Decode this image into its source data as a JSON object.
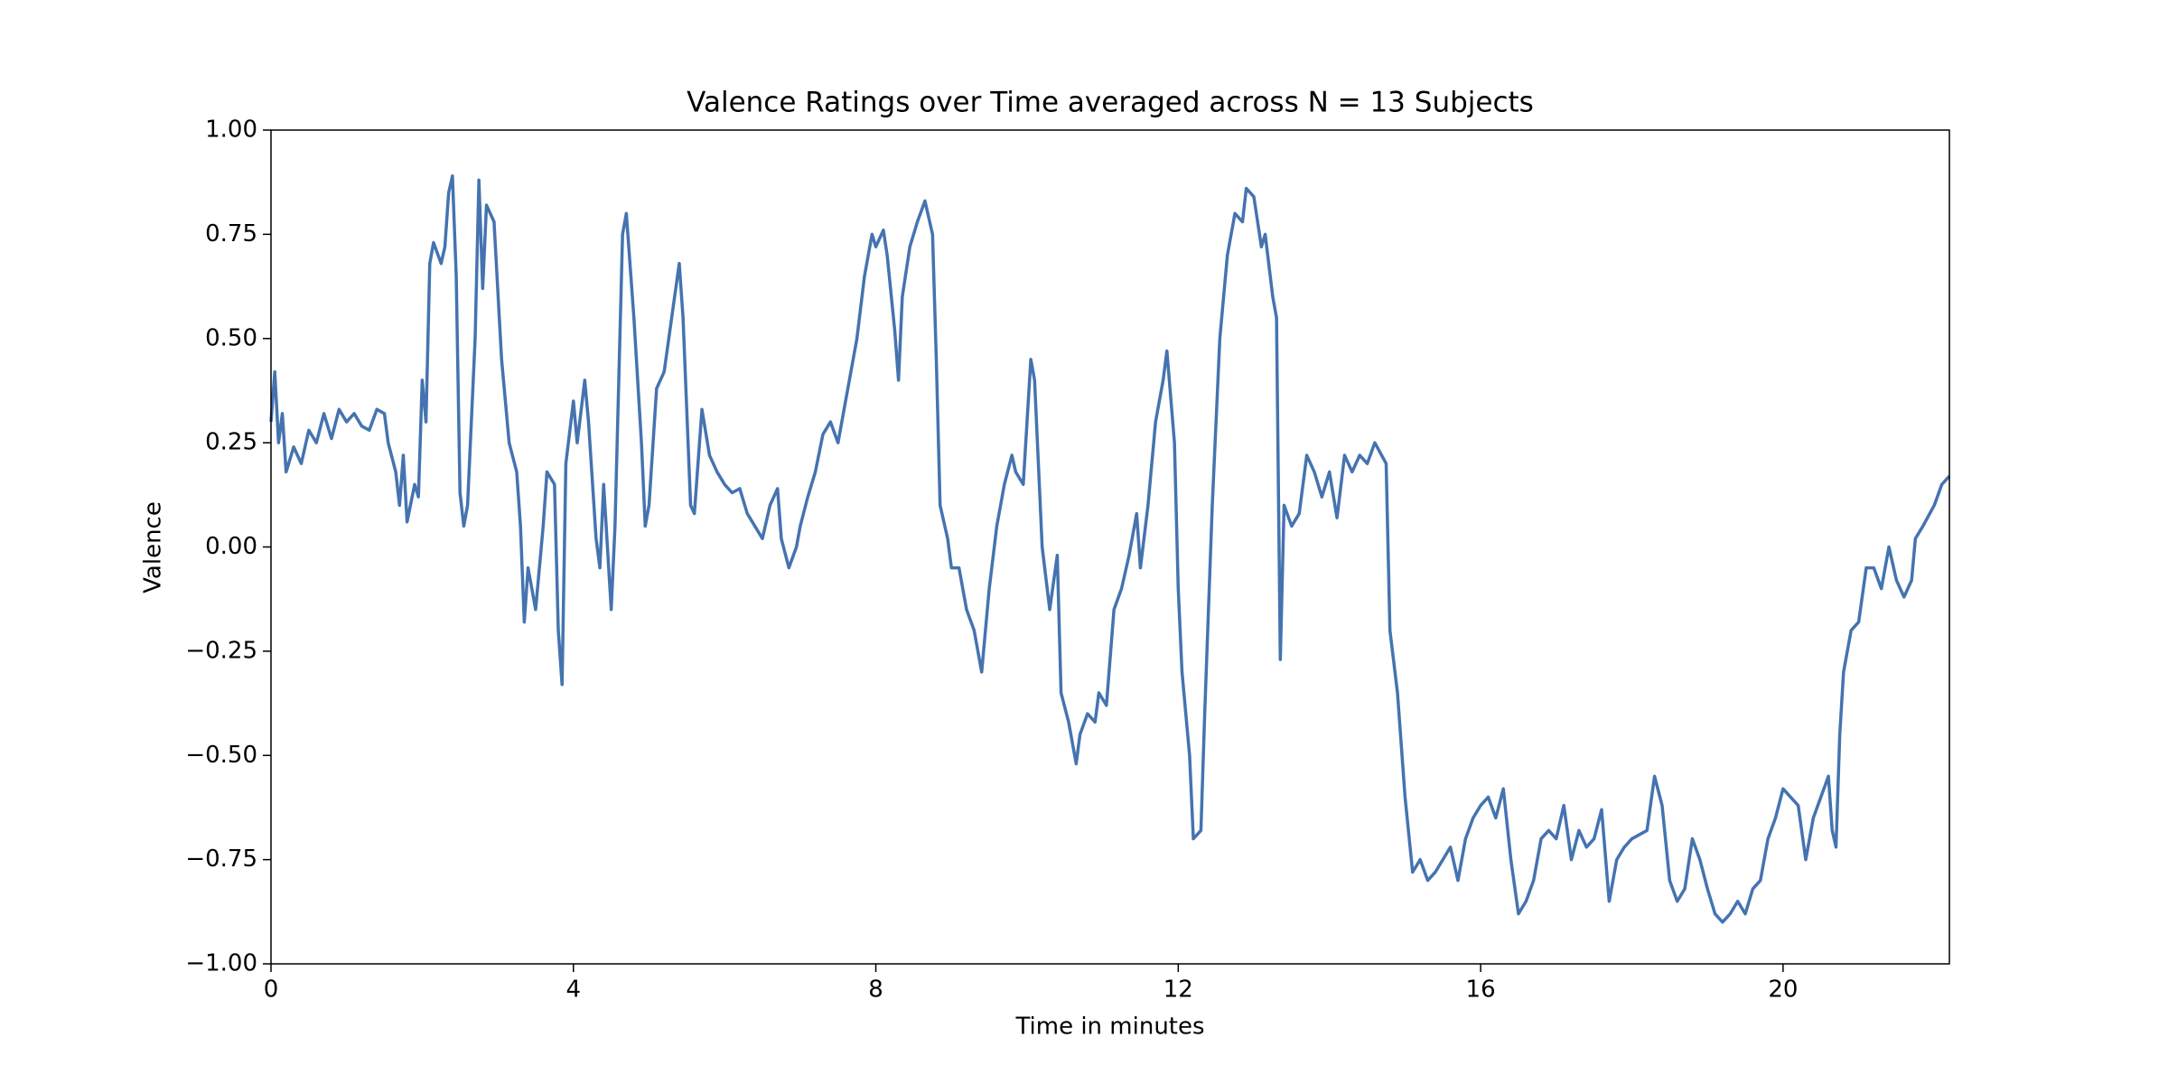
{
  "chart_data": {
    "type": "line",
    "title": "Valence Ratings over Time averaged across N = 13 Subjects",
    "x_label": "Time in minutes",
    "y_label": "Valence",
    "color": "#4573b0",
    "xlim": [
      0,
      22.2
    ],
    "ylim": [
      -1,
      1
    ],
    "xticks": [
      0,
      4,
      8,
      12,
      16,
      20
    ],
    "yticks": [
      {
        "value": -1,
        "label": "−1.00"
      },
      {
        "value": -0.75,
        "label": "−0.75"
      },
      {
        "value": -0.5,
        "label": "−0.50"
      },
      {
        "value": -0.25,
        "label": "−0.25"
      },
      {
        "value": 0,
        "label": "0.00"
      },
      {
        "value": 0.25,
        "label": "0.25"
      },
      {
        "value": 0.5,
        "label": "0.50"
      },
      {
        "value": 0.75,
        "label": "0.75"
      },
      {
        "value": 1,
        "label": "1.00"
      }
    ],
    "x": [
      0,
      0.05,
      0.1,
      0.15,
      0.2,
      0.3,
      0.4,
      0.5,
      0.6,
      0.7,
      0.8,
      0.9,
      1.0,
      1.1,
      1.2,
      1.3,
      1.4,
      1.5,
      1.55,
      1.65,
      1.7,
      1.75,
      1.8,
      1.9,
      1.95,
      2.0,
      2.05,
      2.1,
      2.15,
      2.25,
      2.3,
      2.35,
      2.4,
      2.45,
      2.5,
      2.55,
      2.6,
      2.7,
      2.75,
      2.8,
      2.85,
      2.95,
      3.05,
      3.15,
      3.25,
      3.3,
      3.35,
      3.4,
      3.5,
      3.6,
      3.65,
      3.75,
      3.8,
      3.85,
      3.9,
      4.0,
      4.05,
      4.15,
      4.2,
      4.3,
      4.35,
      4.4,
      4.5,
      4.55,
      4.6,
      4.65,
      4.7,
      4.8,
      4.9,
      4.95,
      5.0,
      5.1,
      5.2,
      5.3,
      5.4,
      5.45,
      5.55,
      5.6,
      5.7,
      5.8,
      5.9,
      6.0,
      6.1,
      6.2,
      6.3,
      6.4,
      6.5,
      6.6,
      6.7,
      6.75,
      6.85,
      6.95,
      7.0,
      7.1,
      7.2,
      7.3,
      7.4,
      7.5,
      7.6,
      7.7,
      7.75,
      7.85,
      7.95,
      8.0,
      8.1,
      8.15,
      8.25,
      8.3,
      8.35,
      8.45,
      8.55,
      8.65,
      8.75,
      8.8,
      8.85,
      8.95,
      9.0,
      9.1,
      9.2,
      9.3,
      9.4,
      9.5,
      9.6,
      9.7,
      9.8,
      9.85,
      9.95,
      10.05,
      10.1,
      10.2,
      10.3,
      10.4,
      10.45,
      10.55,
      10.65,
      10.7,
      10.8,
      10.9,
      10.95,
      11.05,
      11.15,
      11.25,
      11.35,
      11.45,
      11.5,
      11.6,
      11.7,
      11.8,
      11.85,
      11.95,
      12.0,
      12.05,
      12.15,
      12.2,
      12.3,
      12.35,
      12.45,
      12.55,
      12.65,
      12.75,
      12.85,
      12.9,
      13.0,
      13.1,
      13.15,
      13.25,
      13.3,
      13.35,
      13.4,
      13.5,
      13.6,
      13.7,
      13.8,
      13.9,
      14.0,
      14.1,
      14.2,
      14.3,
      14.4,
      14.5,
      14.6,
      14.75,
      14.8,
      14.9,
      15.0,
      15.1,
      15.2,
      15.3,
      15.4,
      15.5,
      15.6,
      15.7,
      15.8,
      15.9,
      16.0,
      16.1,
      16.2,
      16.3,
      16.4,
      16.5,
      16.6,
      16.7,
      16.8,
      16.9,
      17.0,
      17.1,
      17.2,
      17.3,
      17.4,
      17.5,
      17.6,
      17.7,
      17.8,
      17.9,
      18.0,
      18.2,
      18.3,
      18.4,
      18.5,
      18.6,
      18.7,
      18.8,
      18.9,
      19.0,
      19.1,
      19.2,
      19.3,
      19.4,
      19.5,
      19.6,
      19.7,
      19.8,
      19.9,
      20.0,
      20.1,
      20.2,
      20.3,
      20.4,
      20.5,
      20.6,
      20.65,
      20.7,
      20.75,
      20.8,
      20.9,
      21.0,
      21.1,
      21.2,
      21.3,
      21.4,
      21.5,
      21.6,
      21.7,
      21.75,
      21.85,
      22.0,
      22.1,
      22.2
    ],
    "values": [
      0.3,
      0.42,
      0.25,
      0.32,
      0.18,
      0.24,
      0.2,
      0.28,
      0.25,
      0.32,
      0.26,
      0.33,
      0.3,
      0.32,
      0.29,
      0.28,
      0.33,
      0.32,
      0.25,
      0.18,
      0.1,
      0.22,
      0.06,
      0.15,
      0.12,
      0.4,
      0.3,
      0.68,
      0.73,
      0.68,
      0.72,
      0.85,
      0.89,
      0.65,
      0.13,
      0.05,
      0.1,
      0.5,
      0.88,
      0.62,
      0.82,
      0.78,
      0.45,
      0.25,
      0.18,
      0.05,
      -0.18,
      -0.05,
      -0.15,
      0.05,
      0.18,
      0.15,
      -0.2,
      -0.33,
      0.2,
      0.35,
      0.25,
      0.4,
      0.3,
      0.02,
      -0.05,
      0.15,
      -0.15,
      0.05,
      0.4,
      0.75,
      0.8,
      0.55,
      0.25,
      0.05,
      0.1,
      0.38,
      0.42,
      0.55,
      0.68,
      0.55,
      0.1,
      0.08,
      0.33,
      0.22,
      0.18,
      0.15,
      0.13,
      0.14,
      0.08,
      0.05,
      0.02,
      0.1,
      0.14,
      0.02,
      -0.05,
      0.0,
      0.05,
      0.12,
      0.18,
      0.27,
      0.3,
      0.25,
      0.35,
      0.45,
      0.5,
      0.65,
      0.75,
      0.72,
      0.76,
      0.7,
      0.52,
      0.4,
      0.6,
      0.72,
      0.78,
      0.83,
      0.75,
      0.45,
      0.1,
      0.02,
      -0.05,
      -0.05,
      -0.15,
      -0.2,
      -0.3,
      -0.1,
      0.05,
      0.15,
      0.22,
      0.18,
      0.15,
      0.45,
      0.4,
      0.0,
      -0.15,
      -0.02,
      -0.35,
      -0.42,
      -0.52,
      -0.45,
      -0.4,
      -0.42,
      -0.35,
      -0.38,
      -0.15,
      -0.1,
      -0.02,
      0.08,
      -0.05,
      0.1,
      0.3,
      0.4,
      0.47,
      0.25,
      -0.1,
      -0.3,
      -0.5,
      -0.7,
      -0.68,
      -0.4,
      0.1,
      0.5,
      0.7,
      0.8,
      0.78,
      0.86,
      0.84,
      0.72,
      0.75,
      0.6,
      0.55,
      -0.27,
      0.1,
      0.05,
      0.08,
      0.22,
      0.18,
      0.12,
      0.18,
      0.07,
      0.22,
      0.18,
      0.22,
      0.2,
      0.25,
      0.2,
      -0.2,
      -0.35,
      -0.6,
      -0.78,
      -0.75,
      -0.8,
      -0.78,
      -0.75,
      -0.72,
      -0.8,
      -0.7,
      -0.65,
      -0.62,
      -0.6,
      -0.65,
      -0.58,
      -0.75,
      -0.88,
      -0.85,
      -0.8,
      -0.7,
      -0.68,
      -0.7,
      -0.62,
      -0.75,
      -0.68,
      -0.72,
      -0.7,
      -0.63,
      -0.85,
      -0.75,
      -0.72,
      -0.7,
      -0.68,
      -0.55,
      -0.62,
      -0.8,
      -0.85,
      -0.82,
      -0.7,
      -0.75,
      -0.82,
      -0.88,
      -0.9,
      -0.88,
      -0.85,
      -0.88,
      -0.82,
      -0.8,
      -0.7,
      -0.65,
      -0.58,
      -0.6,
      -0.62,
      -0.75,
      -0.65,
      -0.6,
      -0.55,
      -0.68,
      -0.72,
      -0.45,
      -0.3,
      -0.2,
      -0.18,
      -0.05,
      -0.05,
      -0.1,
      0.0,
      -0.08,
      -0.12,
      -0.08,
      0.02,
      0.05,
      0.1,
      0.15,
      0.17
    ]
  }
}
